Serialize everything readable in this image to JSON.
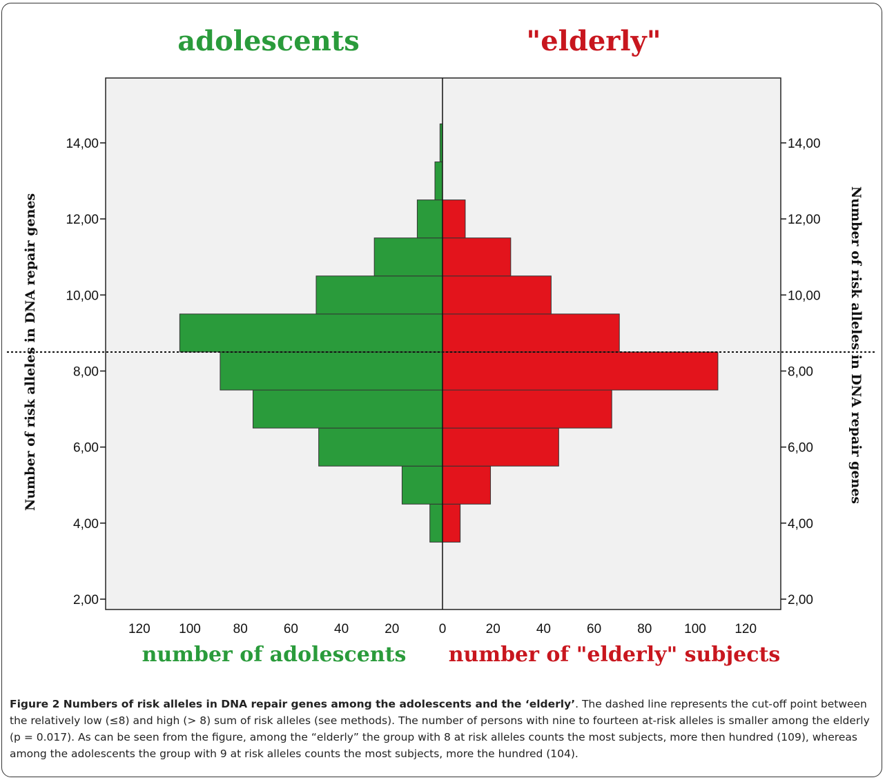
{
  "chart_data": {
    "type": "bar",
    "orientation": "horizontal-population-pyramid",
    "left_title": "adolescents",
    "right_title": "\"elderly\"",
    "left_xlabel": "number of adolescents",
    "right_xlabel": "number of \"elderly\" subjects",
    "ylabel": "Number of risk alleles in DNA repair genes",
    "ylabel_right": "Number of risk alleles in DNA repair genes",
    "y_ticks": [
      "2,00",
      "4,00",
      "6,00",
      "8,00",
      "10,00",
      "12,00",
      "14,00"
    ],
    "y_tick_values": [
      2,
      4,
      6,
      8,
      10,
      12,
      14
    ],
    "ylim": [
      1.5,
      15.5
    ],
    "x_ticks_left": [
      "120",
      "100",
      "80",
      "60",
      "40",
      "20"
    ],
    "x_ticks_right": [
      "0",
      "20",
      "40",
      "60",
      "80",
      "100",
      "120"
    ],
    "xlim": [
      -130,
      130
    ],
    "categories": [
      4,
      5,
      6,
      7,
      8,
      9,
      10,
      11,
      12,
      13,
      14
    ],
    "series": [
      {
        "name": "adolescents",
        "side": "left",
        "color": "#2a9b3b",
        "values": [
          5,
          16,
          49,
          75,
          88,
          104,
          50,
          27,
          10,
          3,
          1
        ]
      },
      {
        "name": "\"elderly\"",
        "side": "right",
        "color": "#e3141c",
        "values": [
          7,
          19,
          46,
          67,
          109,
          70,
          43,
          27,
          9,
          0,
          0
        ]
      }
    ],
    "cutoff_line": {
      "y": 8.5,
      "style": "dashed"
    },
    "grid": false
  },
  "caption": {
    "bold": "Figure 2 Numbers of risk alleles in DNA repair genes among the adolescents and the ‘elderly’",
    "text": ". The dashed line represents the cut-off point between the relatively low (≤8) and high (> 8) sum of risk alleles (see methods). The number of persons with nine to fourteen at-risk alleles is smaller among the elderly (p = 0.017). As can be seen from the figure, among the “elderly” the group with 8 at risk alleles counts the most subjects, more then hundred (109), whereas among the adolescents the group with 9 at risk alleles counts the most subjects, more the hundred (104)."
  }
}
